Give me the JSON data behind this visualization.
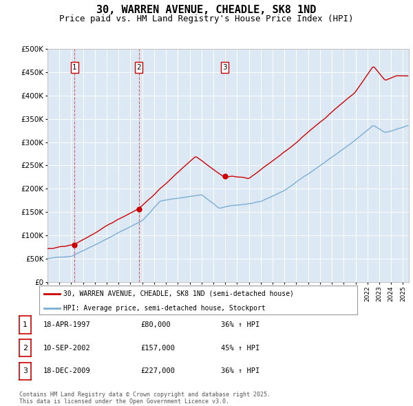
{
  "title": "30, WARREN AVENUE, CHEADLE, SK8 1ND",
  "subtitle": "Price paid vs. HM Land Registry's House Price Index (HPI)",
  "title_fontsize": 11,
  "subtitle_fontsize": 9,
  "ylim": [
    0,
    500000
  ],
  "yticks": [
    0,
    50000,
    100000,
    150000,
    200000,
    250000,
    300000,
    350000,
    400000,
    450000,
    500000
  ],
  "ytick_labels": [
    "£0",
    "£50K",
    "£100K",
    "£150K",
    "£200K",
    "£250K",
    "£300K",
    "£350K",
    "£400K",
    "£450K",
    "£500K"
  ],
  "xlim_start": 1995.0,
  "xlim_end": 2025.5,
  "sale_color": "#cc0000",
  "hpi_color": "#7aadd4",
  "plot_bg_color": "#dce9f5",
  "background_color": "#ffffff",
  "grid_color": "#ffffff",
  "sale_dates": [
    1997.29,
    2002.7,
    2009.96
  ],
  "sale_prices": [
    80000,
    157000,
    227000
  ],
  "sale_marker_numbers": [
    "1",
    "2",
    "3"
  ],
  "legend_sale_label": "30, WARREN AVENUE, CHEADLE, SK8 1ND (semi-detached house)",
  "legend_hpi_label": "HPI: Average price, semi-detached house, Stockport",
  "table_rows": [
    {
      "num": "1",
      "date": "18-APR-1997",
      "price": "£80,000",
      "hpi": "36% ↑ HPI"
    },
    {
      "num": "2",
      "date": "10-SEP-2002",
      "price": "£157,000",
      "hpi": "45% ↑ HPI"
    },
    {
      "num": "3",
      "date": "18-DEC-2009",
      "price": "£227,000",
      "hpi": "36% ↑ HPI"
    }
  ],
  "footer": "Contains HM Land Registry data © Crown copyright and database right 2025.\nThis data is licensed under the Open Government Licence v3.0."
}
